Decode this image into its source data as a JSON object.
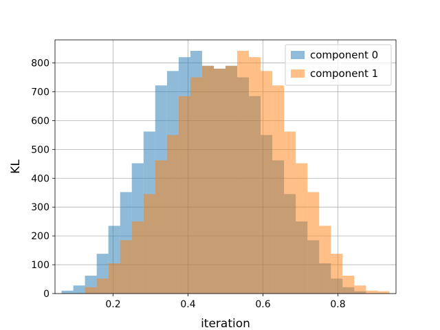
{
  "chart_data": {
    "type": "histogram",
    "xlabel": "iteration",
    "ylabel": "KL",
    "xlim": [
      0.045,
      0.955
    ],
    "ylim": [
      0,
      880
    ],
    "xticks": [
      0.2,
      0.4,
      0.6,
      0.8
    ],
    "xtick_labels": [
      "0.2",
      "0.4",
      "0.6",
      "0.8"
    ],
    "yticks": [
      0,
      100,
      200,
      300,
      400,
      500,
      600,
      700,
      800
    ],
    "ytick_labels": [
      "0",
      "100",
      "200",
      "300",
      "400",
      "500",
      "600",
      "700",
      "800"
    ],
    "grid": true,
    "legend_position": "top-right",
    "series": [
      {
        "name": "component 0",
        "color": "#1f77b4",
        "alpha": 0.5,
        "bin_edges": [
          0.0625,
          0.0938,
          0.125,
          0.1563,
          0.1875,
          0.2188,
          0.25,
          0.2813,
          0.3125,
          0.3438,
          0.375,
          0.4063,
          0.4375,
          0.4688,
          0.5,
          0.5313,
          0.5625,
          0.5938,
          0.625,
          0.6563,
          0.6875,
          0.7188,
          0.75,
          0.7813,
          0.8125,
          0.8438,
          0.875
        ],
        "counts": [
          10,
          28,
          62,
          138,
          235,
          352,
          452,
          562,
          722,
          772,
          820,
          842,
          790,
          780,
          790,
          750,
          685,
          550,
          462,
          345,
          250,
          185,
          105,
          52,
          22,
          8
        ]
      },
      {
        "name": "component 1",
        "color": "#ff7f0e",
        "alpha": 0.5,
        "bin_edges": [
          0.125,
          0.1563,
          0.1875,
          0.2188,
          0.25,
          0.2813,
          0.3125,
          0.3438,
          0.375,
          0.4063,
          0.4375,
          0.4688,
          0.5,
          0.5313,
          0.5625,
          0.5938,
          0.625,
          0.6563,
          0.6875,
          0.7188,
          0.75,
          0.7813,
          0.8125,
          0.8438,
          0.875,
          0.9063,
          0.9375
        ],
        "counts": [
          22,
          52,
          105,
          185,
          250,
          345,
          462,
          550,
          685,
          750,
          790,
          780,
          790,
          842,
          820,
          772,
          722,
          562,
          452,
          352,
          235,
          138,
          62,
          28,
          10,
          8
        ]
      }
    ]
  }
}
